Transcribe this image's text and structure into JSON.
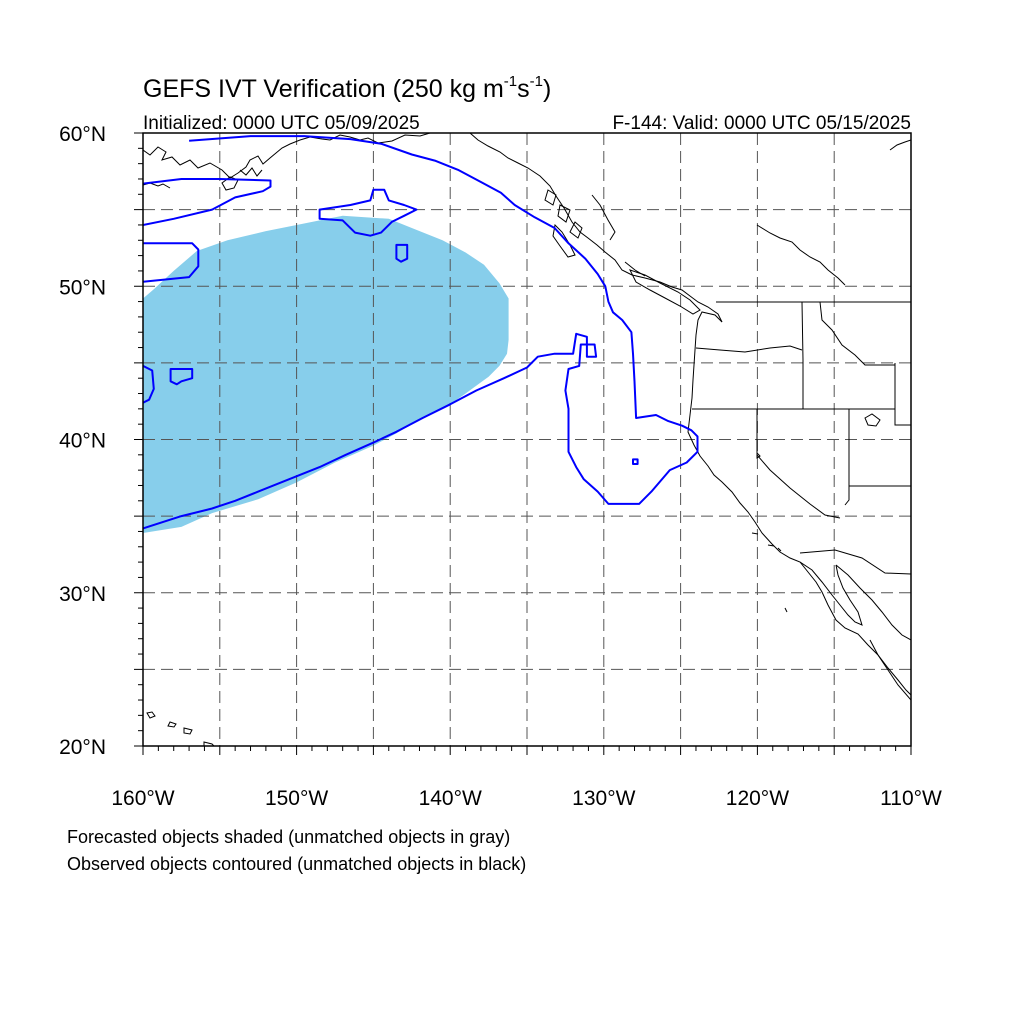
{
  "figure": {
    "title_main": "GEFS IVT Verification (250 kg m",
    "title_exp1": "-1",
    "title_mid": "s",
    "title_exp2": "-1",
    "title_end": ")",
    "init_label": "Initialized: 0000 UTC 05/09/2025",
    "valid_label": "F-144: Valid: 0000 UTC 05/15/2025",
    "caption_line1": "Forecasted objects shaded (unmatched objects in gray)",
    "caption_line2": "Observed objects contoured (unmatched objects in black)"
  },
  "map": {
    "projection": "cylindrical-equidistant",
    "lon_range": [
      -160,
      -110
    ],
    "lat_range": [
      20,
      60
    ],
    "grid": "dashed every 5 degrees",
    "x_tick_labels": [
      {
        "lon": -160,
        "label": "160°W"
      },
      {
        "lon": -150,
        "label": "150°W"
      },
      {
        "lon": -140,
        "label": "140°W"
      },
      {
        "lon": -130,
        "label": "130°W"
      },
      {
        "lon": -120,
        "label": "120°W"
      },
      {
        "lon": -110,
        "label": "110°W"
      }
    ],
    "y_tick_labels": [
      {
        "lat": 60,
        "label": "60°N"
      },
      {
        "lat": 50,
        "label": "50°N"
      },
      {
        "lat": 40,
        "label": "40°N"
      },
      {
        "lat": 30,
        "label": "30°N"
      },
      {
        "lat": 20,
        "label": "20°N"
      }
    ],
    "colors": {
      "forecast_fill": "#87CEEB",
      "observed_contour": "#0000FF",
      "coastline": "#000000",
      "grid": "#555555"
    },
    "forecast_object": {
      "description": "Forecast IVT object (matched, shaded light blue)",
      "polygon": [
        [
          -160,
          33.9
        ],
        [
          -157.5,
          34.3
        ],
        [
          -155.5,
          35.2
        ],
        [
          -152.5,
          36.1
        ],
        [
          -150,
          37.2
        ],
        [
          -147.5,
          38.5
        ],
        [
          -145,
          39.6
        ],
        [
          -143.5,
          40.4
        ],
        [
          -142,
          41.3
        ],
        [
          -140,
          42.3
        ],
        [
          -139,
          43.0
        ],
        [
          -137.5,
          44.1
        ],
        [
          -136.8,
          44.8
        ],
        [
          -136.3,
          45.6
        ],
        [
          -136.2,
          46.5
        ],
        [
          -136.2,
          49.2
        ],
        [
          -136.8,
          50.2
        ],
        [
          -137.8,
          51.4
        ],
        [
          -139.0,
          52.2
        ],
        [
          -140.5,
          53.0
        ],
        [
          -142.5,
          53.8
        ],
        [
          -144.0,
          54.4
        ],
        [
          -147.0,
          54.6
        ],
        [
          -150.0,
          54.0
        ],
        [
          -152.0,
          53.6
        ],
        [
          -154.5,
          53.0
        ],
        [
          -156.5,
          52.3
        ],
        [
          -158.0,
          51.0
        ],
        [
          -159.3,
          49.8
        ],
        [
          -160,
          49.2
        ]
      ]
    },
    "observed_objects": [
      {
        "description": "Observed IVT object (matched, blue contour)",
        "polyline": [
          [
            -160,
            54.0
          ],
          [
            -158.0,
            54.4
          ],
          [
            -155.5,
            55.0
          ],
          [
            -154.0,
            55.8
          ],
          [
            -152.2,
            56.2
          ],
          [
            -151.7,
            56.5
          ],
          [
            -151.7,
            56.9
          ],
          [
            -155.0,
            57.0
          ],
          [
            -157.5,
            57.0
          ],
          [
            -160,
            56.7
          ]
        ]
      },
      {
        "description": "Observed IVT object (matched, blue contour)",
        "polyline": [
          [
            -157.0,
            59.5
          ],
          [
            -153.0,
            59.8
          ],
          [
            -149.5,
            59.8
          ],
          [
            -146.5,
            59.6
          ],
          [
            -144.5,
            59.3
          ],
          [
            -142.5,
            58.6
          ],
          [
            -141.0,
            58.2
          ],
          [
            -139.5,
            57.6
          ],
          [
            -138.0,
            56.8
          ],
          [
            -136.7,
            56.1
          ],
          [
            -135.8,
            55.3
          ],
          [
            -134.5,
            54.5
          ],
          [
            -133.2,
            53.8
          ],
          [
            -132.3,
            52.8
          ],
          [
            -131.2,
            51.8
          ],
          [
            -130.4,
            50.8
          ],
          [
            -129.9,
            50.0
          ],
          [
            -129.7,
            49.0
          ],
          [
            -129.4,
            48.3
          ],
          [
            -128.8,
            47.8
          ],
          [
            -128.2,
            47.0
          ],
          [
            -128.1,
            45.6
          ],
          [
            -128.0,
            43.8
          ],
          [
            -127.9,
            41.4
          ],
          [
            -126.6,
            41.6
          ],
          [
            -125.8,
            41.2
          ],
          [
            -124.9,
            40.9
          ],
          [
            -124.3,
            40.6
          ],
          [
            -123.9,
            40.2
          ],
          [
            -123.9,
            39.2
          ],
          [
            -124.6,
            38.5
          ],
          [
            -125.7,
            38.0
          ],
          [
            -126.3,
            37.3
          ],
          [
            -126.9,
            36.6
          ],
          [
            -127.7,
            35.8
          ],
          [
            -129.7,
            35.8
          ],
          [
            -130.4,
            36.6
          ],
          [
            -131.3,
            37.4
          ],
          [
            -131.8,
            38.2
          ],
          [
            -132.3,
            39.2
          ],
          [
            -132.3,
            42.0
          ],
          [
            -132.5,
            43.2
          ],
          [
            -132.3,
            44.6
          ],
          [
            -131.6,
            44.8
          ],
          [
            -131.5,
            46.2
          ],
          [
            -130.6,
            46.2
          ],
          [
            -130.5,
            45.4
          ],
          [
            -131.1,
            45.4
          ],
          [
            -131.1,
            46.7
          ],
          [
            -131.8,
            46.9
          ],
          [
            -132.0,
            45.6
          ],
          [
            -133.2,
            45.6
          ],
          [
            -134.3,
            45.4
          ],
          [
            -135.0,
            44.7
          ],
          [
            -136.5,
            44.0
          ],
          [
            -138.3,
            43.2
          ],
          [
            -140.0,
            42.3
          ],
          [
            -141.8,
            41.4
          ],
          [
            -143.5,
            40.5
          ],
          [
            -145.0,
            39.8
          ],
          [
            -146.8,
            39.0
          ],
          [
            -148.5,
            38.2
          ],
          [
            -150.5,
            37.4
          ],
          [
            -152.5,
            36.6
          ],
          [
            -154.0,
            36.0
          ],
          [
            -155.5,
            35.5
          ],
          [
            -157.5,
            35.0
          ],
          [
            -160,
            34.2
          ]
        ]
      },
      {
        "description": "Observed IVT object (matched, blue contour)",
        "closed": true,
        "polygon": [
          [
            -148.5,
            55.0
          ],
          [
            -146.5,
            55.3
          ],
          [
            -145.2,
            55.6
          ],
          [
            -145.0,
            56.3
          ],
          [
            -144.3,
            56.3
          ],
          [
            -144.0,
            55.6
          ],
          [
            -143.0,
            55.3
          ],
          [
            -142.2,
            55.0
          ],
          [
            -143.0,
            54.6
          ],
          [
            -143.8,
            54.2
          ],
          [
            -144.5,
            53.5
          ],
          [
            -145.2,
            53.3
          ],
          [
            -146.2,
            53.5
          ],
          [
            -147.0,
            54.3
          ],
          [
            -148.5,
            54.4
          ]
        ]
      },
      {
        "description": "Observed IVT object (matched, blue contour)",
        "closed": true,
        "polygon": [
          [
            -143.5,
            52.7
          ],
          [
            -142.8,
            52.7
          ],
          [
            -142.8,
            51.8
          ],
          [
            -143.2,
            51.6
          ],
          [
            -143.5,
            51.8
          ]
        ]
      },
      {
        "description": "Observed IVT object (matched, blue contour)",
        "polyline": [
          [
            -160,
            52.8
          ],
          [
            -156.8,
            52.8
          ],
          [
            -156.4,
            52.4
          ],
          [
            -156.4,
            51.3
          ],
          [
            -157.0,
            50.6
          ],
          [
            -160,
            50.3
          ]
        ]
      },
      {
        "description": "Observed IVT object (matched, blue contour)",
        "closed": true,
        "polygon": [
          [
            -158.2,
            44.6
          ],
          [
            -156.8,
            44.6
          ],
          [
            -156.8,
            44.0
          ],
          [
            -157.5,
            43.8
          ],
          [
            -157.8,
            43.6
          ],
          [
            -158.2,
            43.8
          ]
        ]
      },
      {
        "description": "Observed IVT object (matched, blue contour)",
        "polyline": [
          [
            -160,
            44.8
          ],
          [
            -159.4,
            44.5
          ],
          [
            -159.3,
            43.3
          ],
          [
            -159.6,
            42.6
          ],
          [
            -160,
            42.4
          ]
        ]
      },
      {
        "description": "Observed IVT object (matched, blue contour)",
        "closed": true,
        "polygon": [
          [
            -128.1,
            38.7
          ],
          [
            -127.8,
            38.7
          ],
          [
            -127.8,
            38.4
          ],
          [
            -128.1,
            38.4
          ]
        ]
      }
    ]
  }
}
